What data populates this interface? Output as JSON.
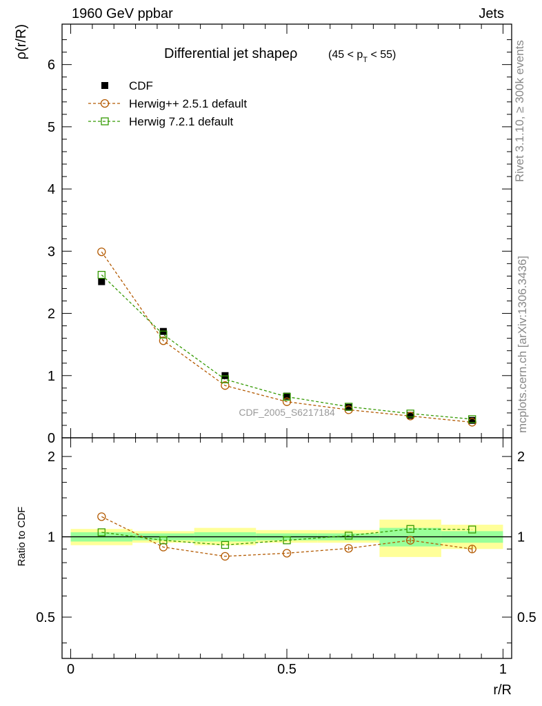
{
  "header": {
    "left": "1960 GeV ppbar",
    "right": "Jets"
  },
  "side_labels": {
    "rivet": "Rivet 3.1.10, ≥ 300k events",
    "mcplots": "mcplots.cern.ch [arXiv:1306.3436]"
  },
  "watermark": "CDF_2005_S6217184",
  "colors": {
    "data": "#000000",
    "herwigpp": "#b35900",
    "herwig7": "#339900",
    "band_inner": "#99ff99",
    "band_outer": "#ffff99"
  },
  "chart_data": [
    {
      "type": "scatter",
      "title": "Differential jet shapeρ",
      "title_cut_pre": "(45 < p",
      "title_cut_sub": "T",
      "title_cut_post": " < 55)",
      "ylabel": "ρ(r/R)",
      "xlabel": "",
      "xlim": [
        -0.02,
        1.02
      ],
      "ylim": [
        0,
        6.65
      ],
      "x_ticks": [
        0,
        0.5,
        1
      ],
      "y_ticks": [
        0,
        1,
        2,
        3,
        4,
        5,
        6
      ],
      "y_tick_labels": [
        "0",
        "1",
        "2",
        "3",
        "4",
        "5",
        "6"
      ],
      "legend": [
        {
          "label": "CDF",
          "marker": "square-filled",
          "color": "#000000"
        },
        {
          "label": "Herwig++ 2.5.1 default",
          "marker": "circle-open",
          "color": "#b35900"
        },
        {
          "label": "Herwig 7.2.1 default",
          "marker": "square-open",
          "color": "#339900"
        }
      ],
      "x": [
        0.0714,
        0.2143,
        0.3571,
        0.5,
        0.6429,
        0.7857,
        0.9286
      ],
      "series": [
        {
          "name": "CDF",
          "values": [
            2.51,
            1.71,
            1.0,
            0.67,
            0.49,
            0.36,
            0.28
          ]
        },
        {
          "name": "Herwig++ 2.5.1 default",
          "values": [
            2.99,
            1.56,
            0.84,
            0.58,
            0.45,
            0.35,
            0.25
          ]
        },
        {
          "name": "Herwig 7.2.1 default",
          "values": [
            2.62,
            1.66,
            0.94,
            0.66,
            0.5,
            0.39,
            0.3
          ]
        }
      ]
    },
    {
      "type": "scatter",
      "title": "",
      "ylabel": "Ratio to CDF",
      "xlabel": "r/R",
      "xlim": [
        -0.02,
        1.02
      ],
      "ylim": [
        0.35,
        2.35
      ],
      "x_ticks": [
        0,
        0.5,
        1
      ],
      "x_tick_labels": [
        "0",
        "0.5",
        "1"
      ],
      "y_ticks": [
        0.5,
        1,
        2
      ],
      "y_tick_labels": [
        "0.5",
        "1",
        "2"
      ],
      "bins": [
        0,
        0.1429,
        0.2857,
        0.4286,
        0.5714,
        0.7143,
        0.8571,
        1
      ],
      "band_inner": [
        [
          0.96,
          1.04
        ],
        [
          0.97,
          1.03
        ],
        [
          0.96,
          1.04
        ],
        [
          0.97,
          1.03
        ],
        [
          0.97,
          1.03
        ],
        [
          0.92,
          1.08
        ],
        [
          0.95,
          1.05
        ]
      ],
      "band_outer": [
        [
          0.93,
          1.07
        ],
        [
          0.95,
          1.05
        ],
        [
          0.93,
          1.08
        ],
        [
          0.95,
          1.06
        ],
        [
          0.95,
          1.06
        ],
        [
          0.84,
          1.16
        ],
        [
          0.9,
          1.11
        ]
      ],
      "x": [
        0.0714,
        0.2143,
        0.3571,
        0.5,
        0.6429,
        0.7857,
        0.9286
      ],
      "series": [
        {
          "name": "Herwig++ 2.5.1 default",
          "values": [
            1.19,
            0.915,
            0.845,
            0.868,
            0.905,
            0.97,
            0.9
          ],
          "errors": [
            0,
            0,
            0,
            0,
            0.015,
            0.02,
            0.025
          ]
        },
        {
          "name": "Herwig 7.2.1 default",
          "values": [
            1.04,
            0.97,
            0.932,
            0.97,
            1.01,
            1.07,
            1.065
          ],
          "errors": [
            0,
            0,
            0,
            0,
            0,
            0,
            0
          ]
        }
      ]
    }
  ]
}
